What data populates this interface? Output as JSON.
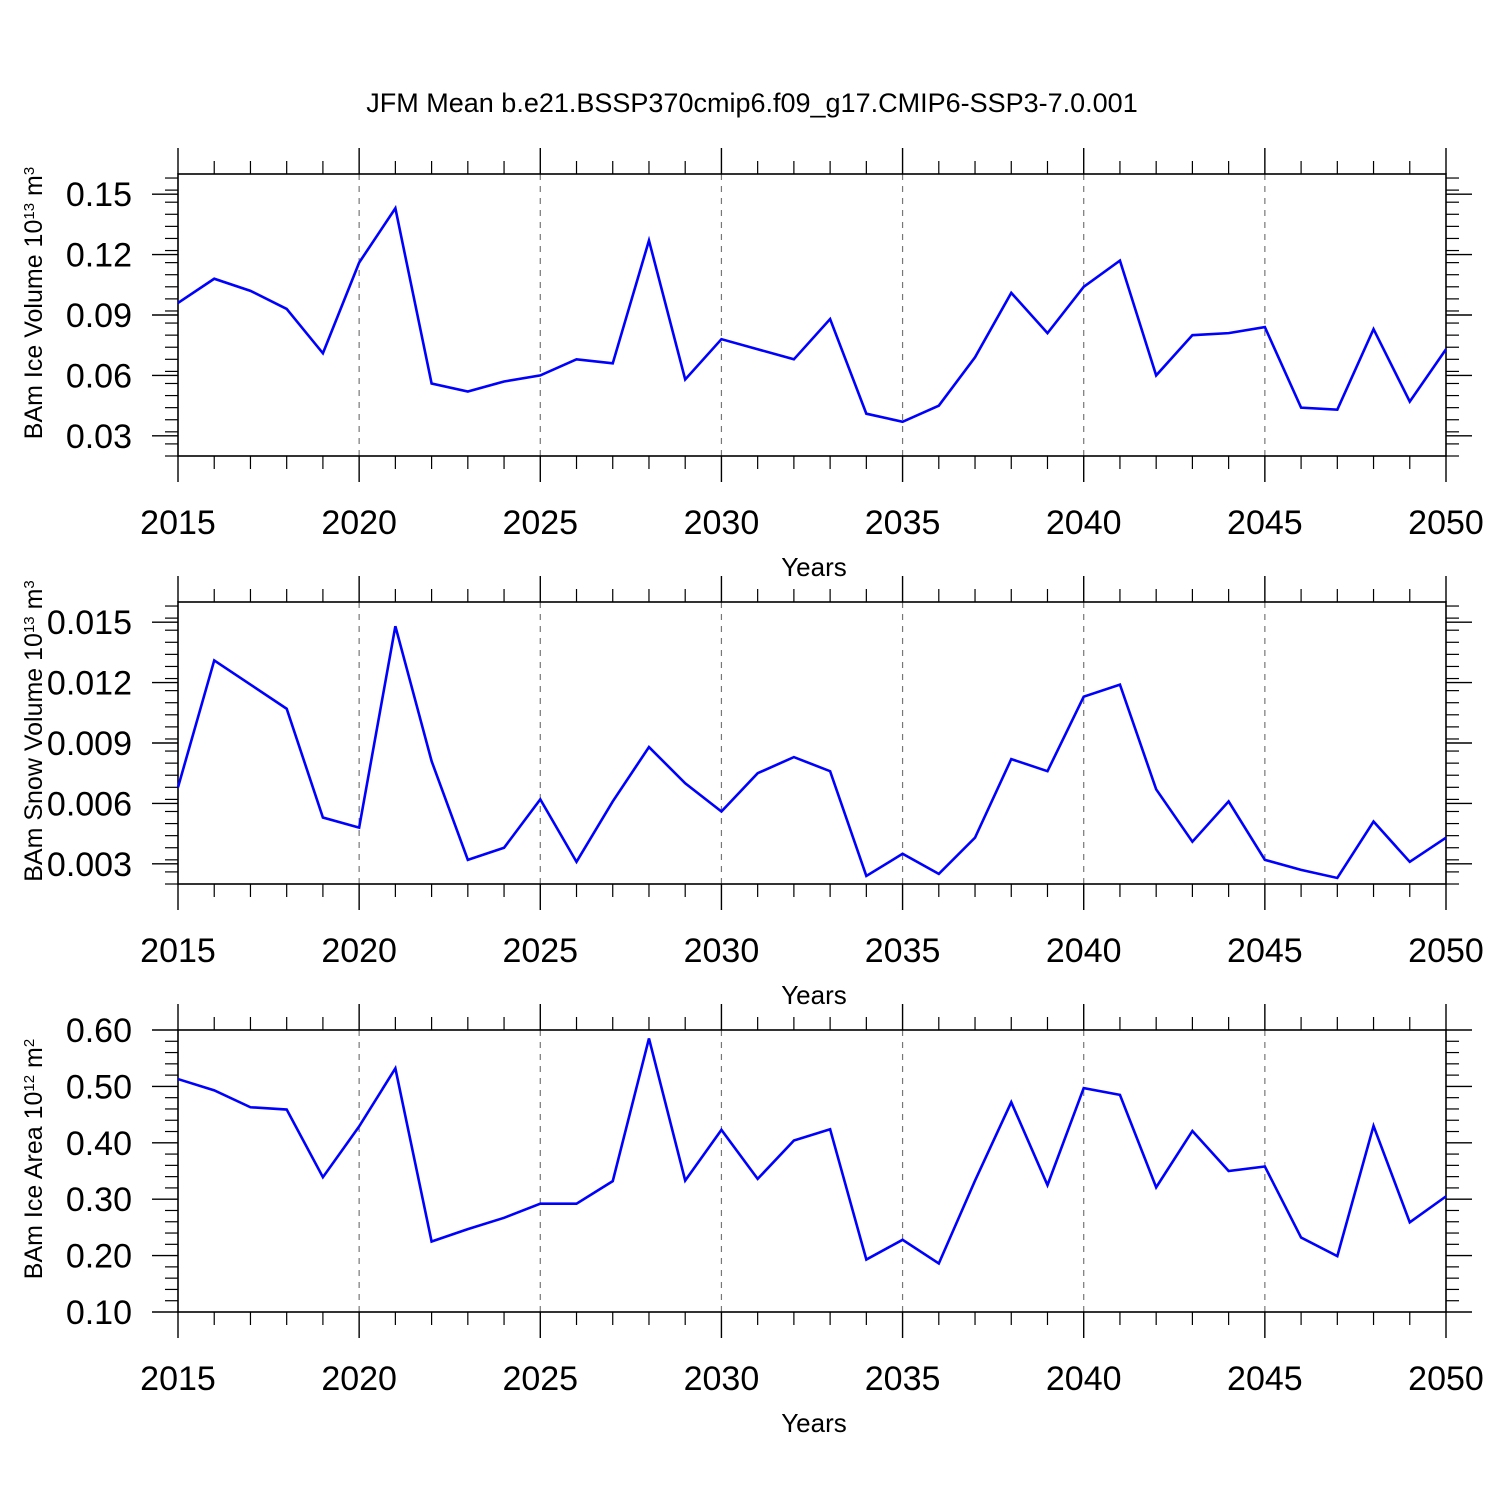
{
  "title": "JFM Mean b.e21.BSSP370cmip6.f09_g17.CMIP6-SSP3-7.0.001",
  "colors": {
    "series": "#0000ff",
    "axis": "#000000",
    "grid": "#777777"
  },
  "chart_data": [
    {
      "type": "line",
      "ylabel": {
        "base": "BAm Ice Volume 10",
        "exponent": "13",
        "unit": " m",
        "unit_exponent": "3"
      },
      "xlabel": "Years",
      "xlim": [
        2015,
        2050
      ],
      "ylim": [
        0.02,
        0.16
      ],
      "xticks": [
        2015,
        2020,
        2025,
        2030,
        2035,
        2040,
        2045,
        2050
      ],
      "xtick_labels": [
        "2015",
        "2020",
        "2025",
        "2030",
        "2035",
        "2040",
        "2045",
        "2050"
      ],
      "yticks": [
        0.03,
        0.06,
        0.09,
        0.12,
        0.15
      ],
      "ytick_labels": [
        "0.03",
        "0.06",
        "0.09",
        "0.12",
        "0.15"
      ],
      "grid": "vertical dashed at major x ticks",
      "series": [
        {
          "x": [
            2015,
            2016,
            2017,
            2018,
            2019,
            2020,
            2021,
            2022,
            2023,
            2024,
            2025,
            2026,
            2027,
            2028,
            2029,
            2030,
            2031,
            2032,
            2033,
            2034,
            2035,
            2036,
            2037,
            2038,
            2039,
            2040,
            2041,
            2042,
            2043,
            2044,
            2045,
            2046,
            2047,
            2048,
            2049,
            2050
          ],
          "values": [
            0.096,
            0.108,
            0.102,
            0.093,
            0.071,
            0.116,
            0.143,
            0.056,
            0.052,
            0.057,
            0.06,
            0.068,
            0.066,
            0.127,
            0.058,
            0.078,
            0.073,
            0.068,
            0.088,
            0.041,
            0.037,
            0.045,
            0.069,
            0.101,
            0.081,
            0.104,
            0.117,
            0.06,
            0.08,
            0.081,
            0.084,
            0.044,
            0.043,
            0.083,
            0.047,
            0.073
          ]
        }
      ]
    },
    {
      "type": "line",
      "ylabel": {
        "base": "BAm Snow Volume 10",
        "exponent": "13",
        "unit": " m",
        "unit_exponent": "3"
      },
      "xlabel": "Years",
      "xlim": [
        2015,
        2050
      ],
      "ylim": [
        0.002,
        0.016
      ],
      "xticks": [
        2015,
        2020,
        2025,
        2030,
        2035,
        2040,
        2045,
        2050
      ],
      "xtick_labels": [
        "2015",
        "2020",
        "2025",
        "2030",
        "2035",
        "2040",
        "2045",
        "2050"
      ],
      "yticks": [
        0.003,
        0.006,
        0.009,
        0.012,
        0.015
      ],
      "ytick_labels": [
        "0.003",
        "0.006",
        "0.009",
        "0.012",
        "0.015"
      ],
      "grid": "vertical dashed at major x ticks",
      "series": [
        {
          "x": [
            2015,
            2016,
            2017,
            2018,
            2019,
            2020,
            2021,
            2022,
            2023,
            2024,
            2025,
            2026,
            2027,
            2028,
            2029,
            2030,
            2031,
            2032,
            2033,
            2034,
            2035,
            2036,
            2037,
            2038,
            2039,
            2040,
            2041,
            2042,
            2043,
            2044,
            2045,
            2046,
            2047,
            2048,
            2049,
            2050
          ],
          "values": [
            0.0068,
            0.0131,
            0.0119,
            0.0107,
            0.0053,
            0.0048,
            0.0148,
            0.0081,
            0.0032,
            0.0038,
            0.0062,
            0.0031,
            0.0061,
            0.0088,
            0.007,
            0.0056,
            0.0075,
            0.0083,
            0.0076,
            0.0024,
            0.0035,
            0.0025,
            0.0043,
            0.0082,
            0.0076,
            0.0113,
            0.0119,
            0.0067,
            0.0041,
            0.0061,
            0.0032,
            0.0027,
            0.0023,
            0.0051,
            0.0031,
            0.0043
          ]
        }
      ]
    },
    {
      "type": "line",
      "ylabel": {
        "base": "BAm Ice Area 10",
        "exponent": "12",
        "unit": " m",
        "unit_exponent": "2"
      },
      "xlabel": "Years",
      "xlim": [
        2015,
        2050
      ],
      "ylim": [
        0.1,
        0.6
      ],
      "xticks": [
        2015,
        2020,
        2025,
        2030,
        2035,
        2040,
        2045,
        2050
      ],
      "xtick_labels": [
        "2015",
        "2020",
        "2025",
        "2030",
        "2035",
        "2040",
        "2045",
        "2050"
      ],
      "yticks": [
        0.1,
        0.2,
        0.3,
        0.4,
        0.5,
        0.6
      ],
      "ytick_labels": [
        "0.10",
        "0.20",
        "0.30",
        "0.40",
        "0.50",
        "0.60"
      ],
      "grid": "vertical dashed at major x ticks",
      "series": [
        {
          "x": [
            2015,
            2016,
            2017,
            2018,
            2019,
            2020,
            2021,
            2022,
            2023,
            2024,
            2025,
            2026,
            2027,
            2028,
            2029,
            2030,
            2031,
            2032,
            2033,
            2034,
            2035,
            2036,
            2037,
            2038,
            2039,
            2040,
            2041,
            2042,
            2043,
            2044,
            2045,
            2046,
            2047,
            2048,
            2049,
            2050
          ],
          "values": [
            0.513,
            0.493,
            0.463,
            0.459,
            0.339,
            0.429,
            0.532,
            0.225,
            0.247,
            0.267,
            0.292,
            0.292,
            0.332,
            0.585,
            0.333,
            0.423,
            0.336,
            0.404,
            0.424,
            0.193,
            0.228,
            0.186,
            0.333,
            0.472,
            0.325,
            0.497,
            0.485,
            0.321,
            0.421,
            0.35,
            0.358,
            0.232,
            0.199,
            0.43,
            0.259,
            0.305
          ]
        }
      ]
    }
  ]
}
